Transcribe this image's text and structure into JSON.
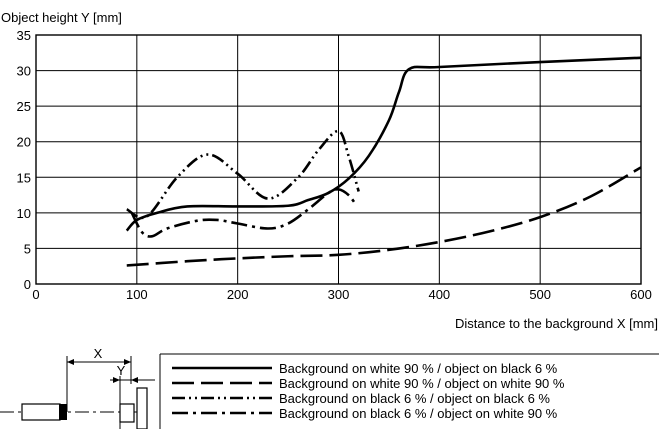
{
  "chart_data": {
    "type": "line",
    "ylabel": "Object height Y [mm]",
    "xlabel": "Distance to the background X [mm]",
    "xlim": [
      0,
      600
    ],
    "ylim": [
      0,
      35
    ],
    "x_ticks": [
      0,
      100,
      200,
      300,
      400,
      500,
      600
    ],
    "y_ticks": [
      0,
      5,
      10,
      15,
      20,
      25,
      30,
      35
    ],
    "grid": true,
    "series": [
      {
        "name": "Background on white 90 % / object on black 6 %",
        "style": "solid",
        "x": [
          90,
          100,
          120,
          150,
          200,
          250,
          270,
          290,
          310,
          330,
          350,
          360,
          370,
          400,
          500,
          600
        ],
        "y": [
          7.5,
          9.0,
          10.0,
          10.9,
          10.9,
          11.0,
          11.8,
          12.8,
          14.8,
          18.0,
          23.0,
          27.0,
          30.2,
          30.5,
          31.2,
          31.8
        ]
      },
      {
        "name": "Background on white 90 % / object on white 90 %",
        "style": "long-dash",
        "x": [
          90,
          150,
          200,
          250,
          300,
          350,
          400,
          450,
          500,
          550,
          600
        ],
        "y": [
          2.6,
          3.2,
          3.6,
          3.9,
          4.1,
          4.8,
          5.9,
          7.4,
          9.4,
          12.3,
          16.4
        ]
      },
      {
        "name": "Background on black 6 % / object on black 6 %",
        "style": "dash-dot-dot",
        "x": [
          90,
          110,
          140,
          170,
          200,
          230,
          260,
          280,
          300,
          310,
          320
        ],
        "y": [
          10.5,
          9.5,
          15.0,
          18.2,
          15.5,
          12.0,
          15.0,
          18.8,
          21.5,
          18.0,
          13.0
        ]
      },
      {
        "name": "Background on black 6 % / object on white 90 %",
        "style": "dash-dot",
        "x": [
          95,
          105,
          115,
          130,
          160,
          180,
          200,
          230,
          250,
          270,
          290,
          300,
          310,
          318
        ],
        "y": [
          10.0,
          7.3,
          6.7,
          7.8,
          8.9,
          9.0,
          8.5,
          7.8,
          8.5,
          10.5,
          12.8,
          13.3,
          12.5,
          11.0
        ]
      }
    ]
  },
  "diagram": {
    "label_x": "X",
    "label_y": "Y"
  }
}
